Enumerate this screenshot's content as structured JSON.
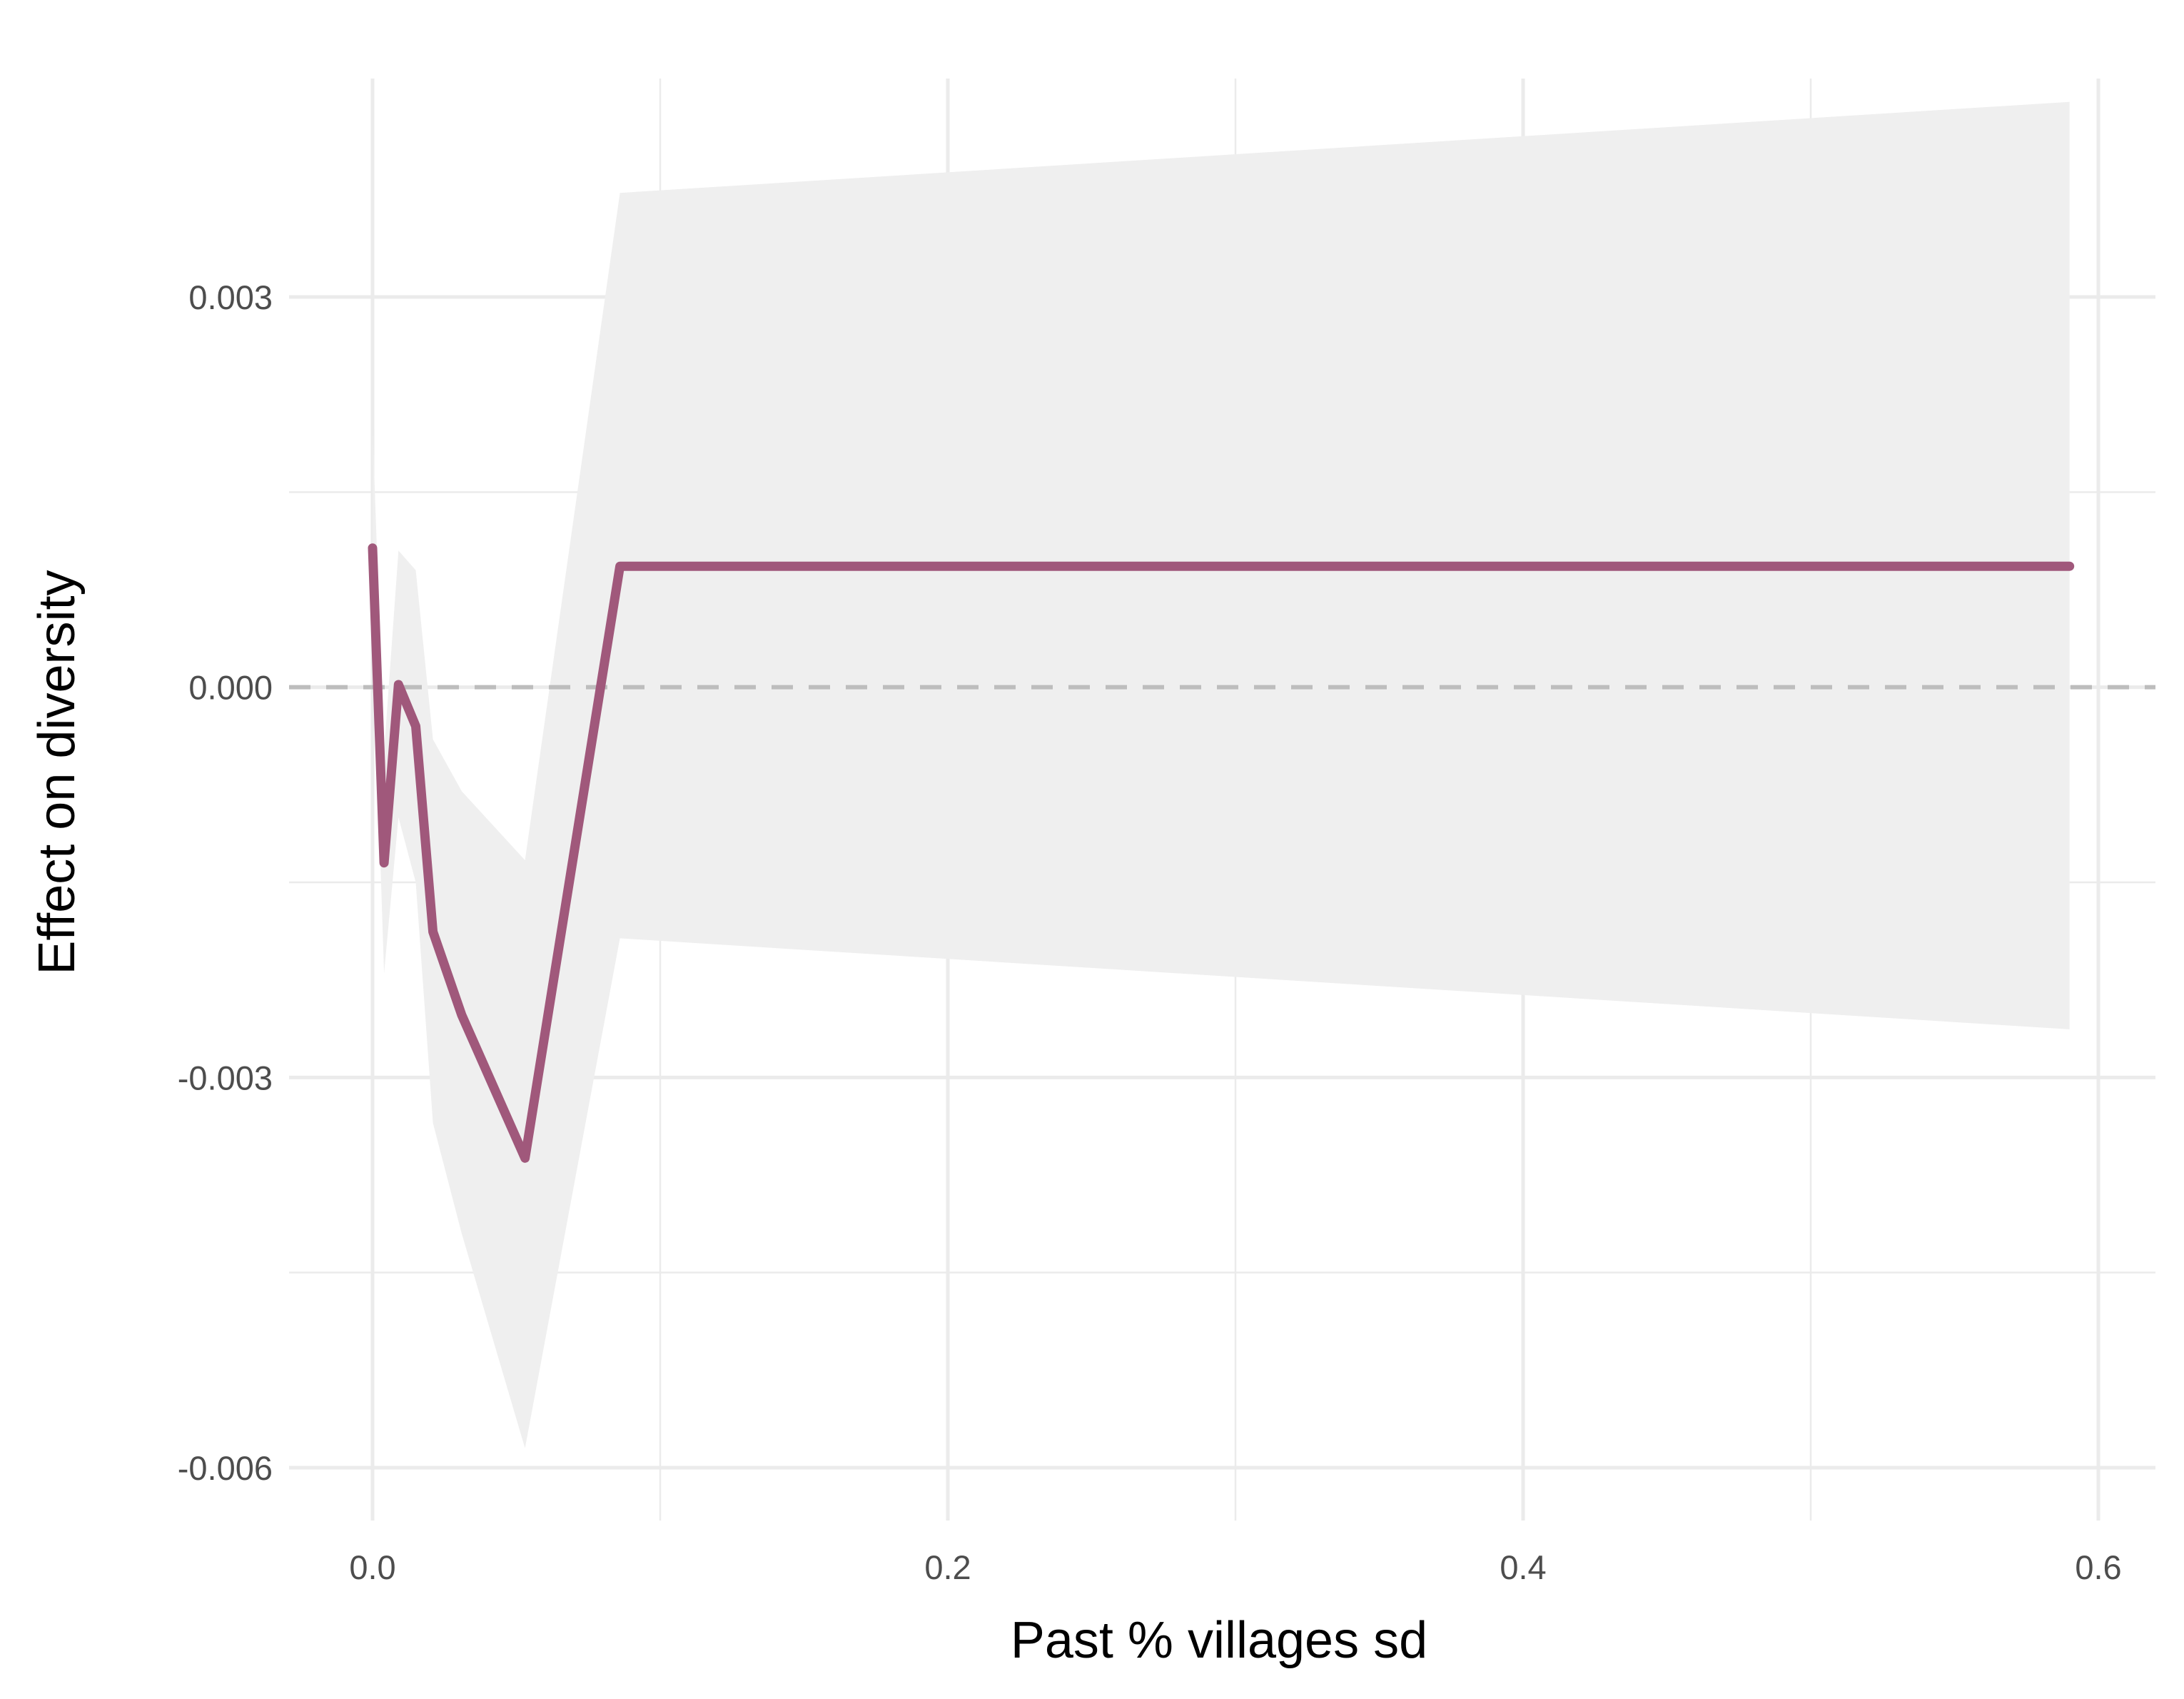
{
  "chart_data": {
    "type": "line",
    "title": "",
    "xlabel": "Past % villages sd",
    "ylabel": "Effect on diversity",
    "xlim": [
      -0.03,
      0.61
    ],
    "ylim": [
      -0.0063,
      0.0046
    ],
    "x_ticks": [
      0.0,
      0.2,
      0.4,
      0.6
    ],
    "x_tick_labels": [
      "0.0",
      "0.2",
      "0.4",
      "0.6"
    ],
    "y_ticks": [
      0.003,
      0.0,
      -0.003,
      -0.006
    ],
    "y_tick_labels": [
      "0.003",
      "0.000",
      "-0.003",
      "-0.006"
    ],
    "grid": true,
    "reference_line": {
      "y": 0,
      "style": "dashed",
      "color": "#bdbdbd"
    },
    "series": [
      {
        "color": "#a0587b",
        "x": [
          0.0,
          0.004,
          0.009,
          0.015,
          0.021,
          0.031,
          0.053,
          0.086,
          0.59
        ],
        "y": [
          0.00107,
          -0.00135,
          2e-05,
          -0.0003,
          -0.00188,
          -0.00252,
          -0.00362,
          0.00093,
          0.00093
        ]
      }
    ],
    "ribbon": {
      "color": "#efefef",
      "x": [
        0.0,
        0.004,
        0.009,
        0.015,
        0.021,
        0.031,
        0.053,
        0.086,
        0.59
      ],
      "lower": [
        0.0005,
        -0.0022,
        -0.001,
        -0.0015,
        -0.00335,
        -0.0042,
        -0.00585,
        -0.00193,
        -0.00263
      ],
      "upper": [
        0.002,
        -0.0005,
        0.00105,
        0.0009,
        -0.0004,
        -0.0008,
        -0.00133,
        0.0038,
        0.0045
      ]
    }
  }
}
